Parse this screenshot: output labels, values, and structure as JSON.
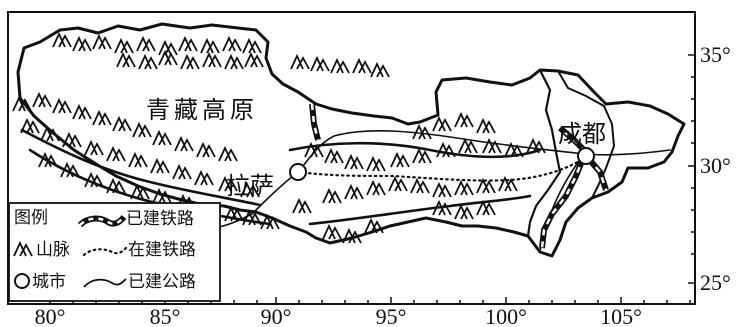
{
  "map": {
    "labels": {
      "plateau": "青藏高原",
      "lhasa": "拉萨",
      "chengdu": "成都"
    },
    "axes": {
      "lon_ticks": [
        "80°",
        "85°",
        "90°",
        "95°",
        "100°",
        "105°"
      ],
      "lat_ticks": [
        "35°",
        "30°",
        "25°"
      ]
    },
    "legend": {
      "title": "图例",
      "items": [
        {
          "key": "railway_built",
          "label": "已建铁路"
        },
        {
          "key": "mountain",
          "label": "山脉"
        },
        {
          "key": "railway_building",
          "label": "在建铁路"
        },
        {
          "key": "city",
          "label": "城市"
        },
        {
          "key": "road_built",
          "label": "已建公路"
        }
      ]
    }
  }
}
